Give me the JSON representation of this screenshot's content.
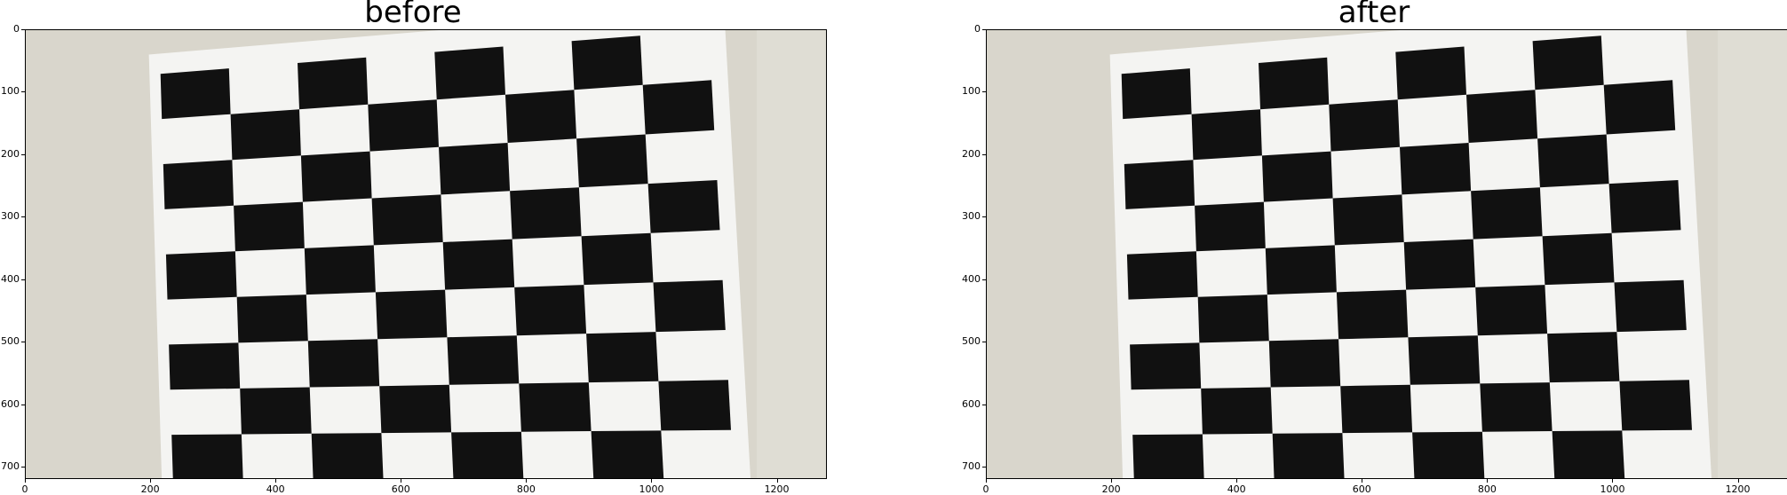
{
  "panels": [
    {
      "title": "before",
      "xticks": [
        "0",
        "200",
        "400",
        "600",
        "800",
        "1000",
        "1200"
      ],
      "yticks": [
        "0",
        "100",
        "200",
        "300",
        "400",
        "500",
        "600",
        "700"
      ]
    },
    {
      "title": "after",
      "xticks": [
        "0",
        "200",
        "400",
        "600",
        "800",
        "1000",
        "1200"
      ],
      "yticks": [
        "0",
        "100",
        "200",
        "300",
        "400",
        "500",
        "600",
        "700"
      ]
    }
  ],
  "image": {
    "width": 1280,
    "height": 720,
    "subject": "checkerboard-calibration-pattern",
    "wall_color": "#d9d6cc",
    "paper_color": "#f4f4f2",
    "square_color": "#111111"
  }
}
